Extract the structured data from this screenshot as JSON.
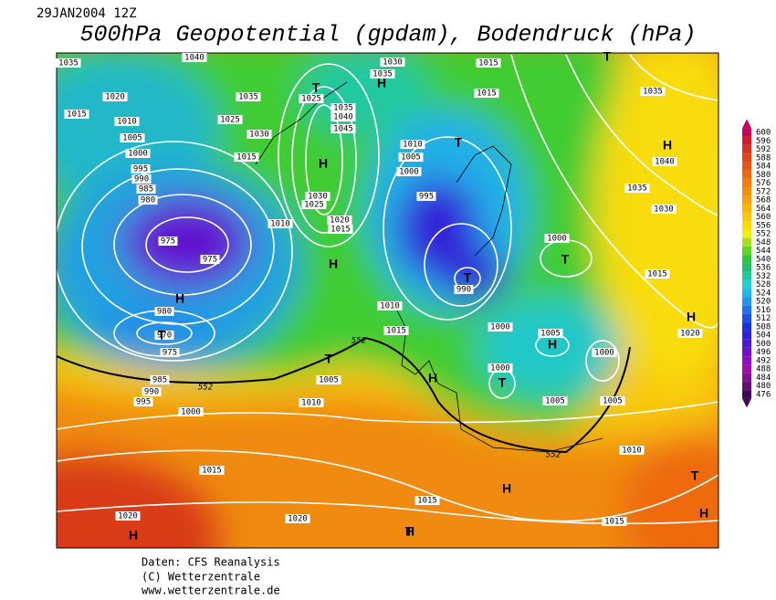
{
  "header": {
    "date": "29JAN2004 12Z",
    "title": "500hPa Geopotential (gpdam), Bodendruck (hPa)"
  },
  "legend": {
    "levels": [
      600,
      596,
      592,
      588,
      584,
      580,
      576,
      572,
      568,
      564,
      560,
      556,
      552,
      548,
      544,
      540,
      536,
      532,
      528,
      524,
      520,
      516,
      512,
      508,
      504,
      500,
      496,
      492,
      488,
      484,
      480,
      476
    ],
    "colors": [
      "#c8005c",
      "#d01c2c",
      "#d83420",
      "#e04418",
      "#e85614",
      "#ee6810",
      "#f27a0e",
      "#f68c0c",
      "#f8a00a",
      "#fab40a",
      "#fcc80a",
      "#fadc0a",
      "#f0f010",
      "#a8e020",
      "#60d428",
      "#30c838",
      "#20c070",
      "#20c8a0",
      "#20d0d0",
      "#20b8e8",
      "#2094f0",
      "#2070f0",
      "#1c50e8",
      "#1c30e0",
      "#3020d8",
      "#5018d0",
      "#7010c8",
      "#8c10c0",
      "#9c10a8",
      "#80108c",
      "#601070",
      "#400850"
    ]
  },
  "map": {
    "pressure_labels": [
      1035,
      1040,
      1030,
      1035,
      1015,
      1035,
      1020,
      1035,
      1025,
      1015,
      1015,
      1010,
      1025,
      1035,
      1040,
      1045,
      1030,
      1005,
      1010,
      1005,
      1015,
      1040,
      1000,
      1000,
      995,
      990,
      985,
      980,
      1035,
      1030,
      995,
      1025,
      1030,
      1020,
      1015,
      1010,
      975,
      975,
      1000,
      1015,
      990,
      1010,
      980,
      1015,
      1005,
      1000,
      1020,
      970,
      975,
      1000,
      1000,
      1005,
      985,
      990,
      995,
      1010,
      1000,
      1005,
      1005,
      1010,
      1015,
      1015,
      1020,
      1020,
      1015
    ],
    "contour_labels": [
      552,
      552,
      552
    ],
    "centers": [
      "T",
      "H",
      "T",
      "H",
      "T",
      "H",
      "H",
      "T",
      "T",
      "H",
      "H",
      "T",
      "H",
      "T",
      "H",
      "T",
      "H",
      "H",
      "T",
      "H",
      "H",
      "T"
    ]
  },
  "footer": {
    "source": "Daten: CFS Reanalysis",
    "copyright": "(C) Wetterzentrale",
    "url": "www.wetterzentrale.de"
  }
}
